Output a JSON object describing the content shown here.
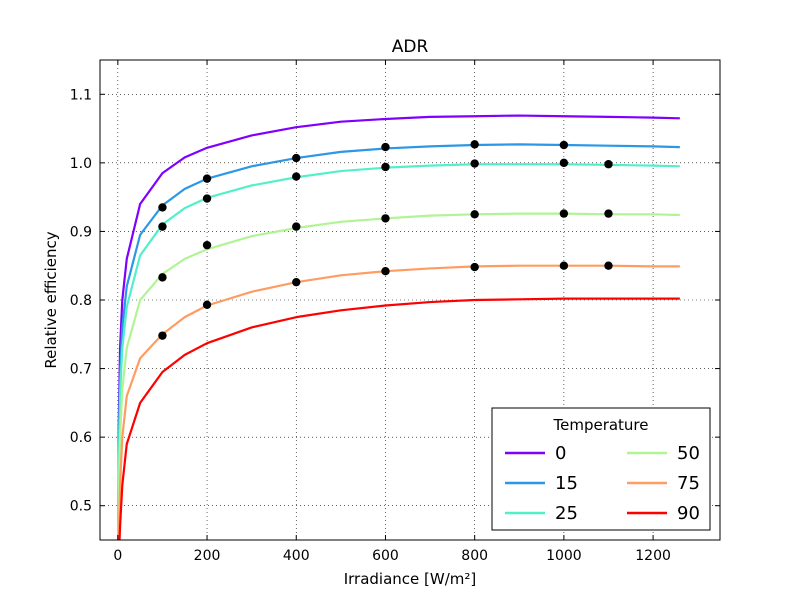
{
  "chart_data": {
    "type": "line",
    "title": "ADR",
    "xlabel": "Irradiance [W/m²]",
    "ylabel": "Relative efficiency",
    "xlim": [
      -40,
      1350
    ],
    "ylim": [
      0.45,
      1.15
    ],
    "xticks": [
      0,
      200,
      400,
      600,
      800,
      1000,
      1200
    ],
    "yticks": [
      0.5,
      0.6,
      0.7,
      0.8,
      0.9,
      1.0,
      1.1
    ],
    "grid": true,
    "legend": {
      "title": "Temperature",
      "placement": "lower-right",
      "columns": 2
    },
    "series": [
      {
        "name": "0",
        "color": "#7f00ff",
        "curve": [
          [
            1,
            0.45
          ],
          [
            2,
            0.62
          ],
          [
            5,
            0.73
          ],
          [
            10,
            0.8
          ],
          [
            20,
            0.86
          ],
          [
            50,
            0.94
          ],
          [
            100,
            0.985
          ],
          [
            150,
            1.008
          ],
          [
            200,
            1.022
          ],
          [
            300,
            1.04
          ],
          [
            400,
            1.052
          ],
          [
            500,
            1.06
          ],
          [
            600,
            1.064
          ],
          [
            700,
            1.067
          ],
          [
            800,
            1.068
          ],
          [
            900,
            1.069
          ],
          [
            1000,
            1.068
          ],
          [
            1100,
            1.067
          ],
          [
            1200,
            1.066
          ],
          [
            1260,
            1.065
          ]
        ],
        "points": []
      },
      {
        "name": "15",
        "color": "#2c97e6",
        "curve": [
          [
            1,
            0.45
          ],
          [
            2,
            0.58
          ],
          [
            5,
            0.69
          ],
          [
            10,
            0.76
          ],
          [
            20,
            0.82
          ],
          [
            50,
            0.895
          ],
          [
            100,
            0.938
          ],
          [
            150,
            0.962
          ],
          [
            200,
            0.977
          ],
          [
            300,
            0.995
          ],
          [
            400,
            1.007
          ],
          [
            500,
            1.016
          ],
          [
            600,
            1.021
          ],
          [
            700,
            1.024
          ],
          [
            800,
            1.026
          ],
          [
            900,
            1.027
          ],
          [
            1000,
            1.026
          ],
          [
            1100,
            1.025
          ],
          [
            1200,
            1.024
          ],
          [
            1260,
            1.023
          ]
        ],
        "points": [
          [
            100,
            0.935
          ],
          [
            200,
            0.977
          ],
          [
            400,
            1.007
          ],
          [
            600,
            1.023
          ],
          [
            800,
            1.027
          ],
          [
            1000,
            1.026
          ]
        ]
      },
      {
        "name": "25",
        "color": "#53efc9",
        "curve": [
          [
            1,
            0.45
          ],
          [
            2,
            0.55
          ],
          [
            5,
            0.66
          ],
          [
            10,
            0.73
          ],
          [
            20,
            0.79
          ],
          [
            50,
            0.865
          ],
          [
            100,
            0.91
          ],
          [
            150,
            0.934
          ],
          [
            200,
            0.949
          ],
          [
            300,
            0.967
          ],
          [
            400,
            0.979
          ],
          [
            500,
            0.988
          ],
          [
            600,
            0.993
          ],
          [
            700,
            0.996
          ],
          [
            800,
            0.998
          ],
          [
            900,
            0.998
          ],
          [
            1000,
            0.998
          ],
          [
            1100,
            0.997
          ],
          [
            1200,
            0.996
          ],
          [
            1260,
            0.995
          ]
        ],
        "points": [
          [
            100,
            0.907
          ],
          [
            200,
            0.948
          ],
          [
            400,
            0.98
          ],
          [
            600,
            0.994
          ],
          [
            800,
            0.999
          ],
          [
            1000,
            1.0
          ],
          [
            1100,
            0.998
          ]
        ]
      },
      {
        "name": "50",
        "color": "#b2f396",
        "curve": [
          [
            1,
            0.45
          ],
          [
            2,
            0.5
          ],
          [
            5,
            0.6
          ],
          [
            10,
            0.67
          ],
          [
            20,
            0.73
          ],
          [
            50,
            0.8
          ],
          [
            100,
            0.838
          ],
          [
            150,
            0.86
          ],
          [
            200,
            0.874
          ],
          [
            300,
            0.893
          ],
          [
            400,
            0.905
          ],
          [
            500,
            0.914
          ],
          [
            600,
            0.919
          ],
          [
            700,
            0.923
          ],
          [
            800,
            0.925
          ],
          [
            900,
            0.926
          ],
          [
            1000,
            0.926
          ],
          [
            1100,
            0.925
          ],
          [
            1200,
            0.925
          ],
          [
            1260,
            0.924
          ]
        ],
        "points": [
          [
            100,
            0.833
          ],
          [
            200,
            0.88
          ],
          [
            400,
            0.907
          ],
          [
            600,
            0.919
          ],
          [
            800,
            0.925
          ],
          [
            1000,
            0.926
          ],
          [
            1100,
            0.926
          ]
        ]
      },
      {
        "name": "75",
        "color": "#ff9c62",
        "curve": [
          [
            1,
            0.42
          ],
          [
            5,
            0.53
          ],
          [
            10,
            0.6
          ],
          [
            20,
            0.66
          ],
          [
            50,
            0.715
          ],
          [
            100,
            0.75
          ],
          [
            150,
            0.775
          ],
          [
            200,
            0.792
          ],
          [
            300,
            0.812
          ],
          [
            400,
            0.826
          ],
          [
            500,
            0.836
          ],
          [
            600,
            0.842
          ],
          [
            700,
            0.846
          ],
          [
            800,
            0.849
          ],
          [
            900,
            0.85
          ],
          [
            1000,
            0.85
          ],
          [
            1100,
            0.85
          ],
          [
            1200,
            0.849
          ],
          [
            1260,
            0.849
          ]
        ],
        "points": [
          [
            100,
            0.748
          ],
          [
            200,
            0.793
          ],
          [
            400,
            0.826
          ],
          [
            600,
            0.842
          ],
          [
            800,
            0.848
          ],
          [
            1000,
            0.85
          ],
          [
            1100,
            0.85
          ]
        ]
      },
      {
        "name": "90",
        "color": "#ff0000",
        "curve": [
          [
            1,
            0.4
          ],
          [
            5,
            0.47
          ],
          [
            10,
            0.53
          ],
          [
            20,
            0.59
          ],
          [
            50,
            0.65
          ],
          [
            100,
            0.695
          ],
          [
            150,
            0.72
          ],
          [
            200,
            0.737
          ],
          [
            300,
            0.76
          ],
          [
            400,
            0.775
          ],
          [
            500,
            0.785
          ],
          [
            600,
            0.792
          ],
          [
            700,
            0.797
          ],
          [
            800,
            0.8
          ],
          [
            900,
            0.801
          ],
          [
            1000,
            0.802
          ],
          [
            1100,
            0.802
          ],
          [
            1200,
            0.802
          ],
          [
            1260,
            0.802
          ]
        ],
        "points": []
      }
    ]
  }
}
